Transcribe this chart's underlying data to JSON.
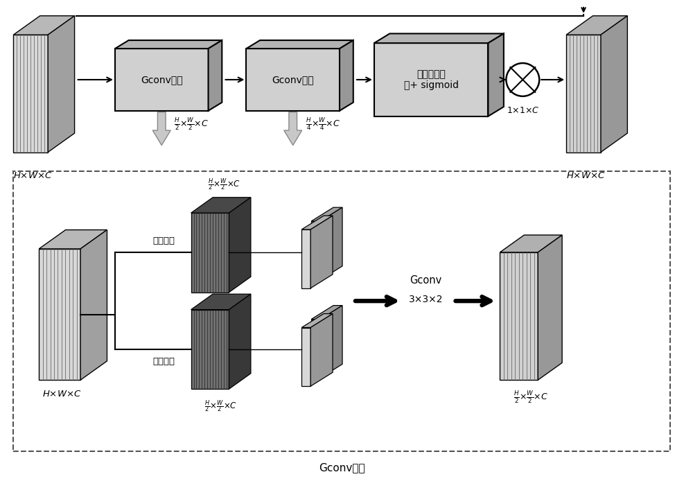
{
  "bg_color": "#ffffff",
  "title": "Gconv模块",
  "label_gconv1": "Gconv模块",
  "label_gconv2": "Gconv模块",
  "label_global": "全局平均池\n化+ sigmoid",
  "label_maxpool": "最大池化",
  "label_avgpool": "平均池化",
  "label_gconv3x3": "Gconv",
  "label_3x3x2": "3×3×2"
}
